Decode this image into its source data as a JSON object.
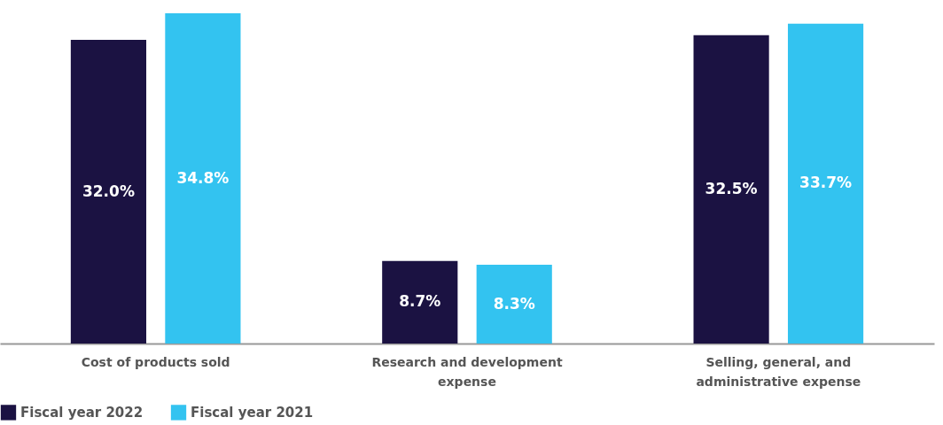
{
  "chart_data": {
    "type": "bar",
    "categories": [
      "Cost of products sold",
      "Research and development expense",
      "Selling, general, and administrative expense"
    ],
    "series": [
      {
        "name": "Fiscal year 2022",
        "color": "#1b1242",
        "values": [
          32.0,
          8.7,
          32.5
        ],
        "value_labels": [
          "32.0%",
          "8.7%",
          "32.5%"
        ]
      },
      {
        "name": "Fiscal year 2021",
        "color": "#33c3f0",
        "values": [
          34.8,
          8.3,
          33.7
        ],
        "value_labels": [
          "34.8%",
          "8.3%",
          "33.7%"
        ]
      }
    ],
    "legend": "bottom",
    "grid": false,
    "tick_labels": "x"
  }
}
